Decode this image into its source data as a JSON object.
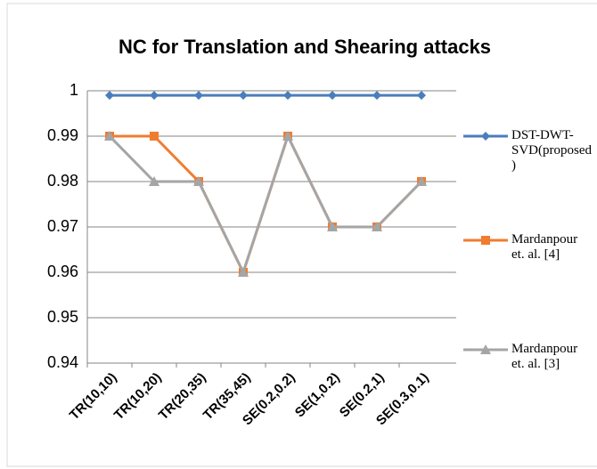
{
  "chart_data": {
    "type": "line",
    "title": "NC for Translation and Shearing attacks",
    "categories": [
      "TR(10,10)",
      "TR(10,20)",
      "TR(20,35)",
      "TR(35,45)",
      "SE(0.2,0.2)",
      "SE(1,0.2)",
      "SE(0.2,1)",
      "SE(0.3,0.1)"
    ],
    "series": [
      {
        "name": "DST-DWT-SVD(proposed)",
        "color": "#4a7ebb",
        "marker": "diamond",
        "values": [
          0.999,
          0.999,
          0.999,
          0.999,
          0.999,
          0.999,
          0.999,
          0.999
        ]
      },
      {
        "name": "Mardanpour et. al. [4]",
        "color": "#f07c30",
        "marker": "square",
        "values": [
          0.99,
          0.99,
          0.98,
          0.96,
          0.99,
          0.97,
          0.97,
          0.98
        ]
      },
      {
        "name": "Mardanpour et. al. [3]",
        "color": "#a5a5a5",
        "marker": "triangle",
        "values": [
          0.99,
          0.98,
          0.98,
          0.96,
          0.99,
          0.97,
          0.97,
          0.98
        ]
      }
    ],
    "ylim": [
      0.94,
      1
    ],
    "yticks": [
      0.94,
      0.95,
      0.96,
      0.97,
      0.98,
      0.99,
      1
    ],
    "grid": true,
    "legend": "right"
  }
}
